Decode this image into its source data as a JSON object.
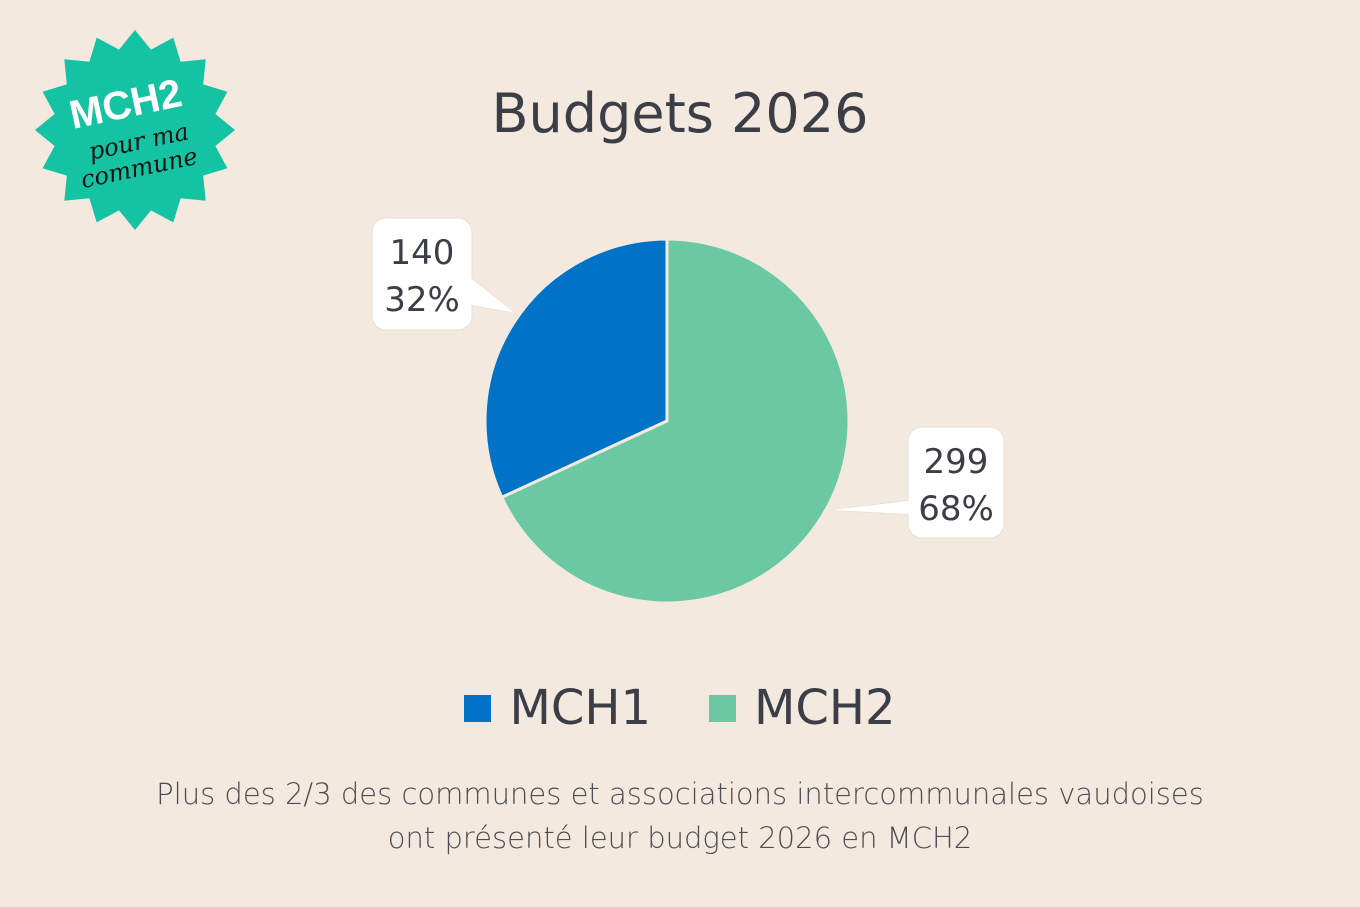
{
  "logo": {
    "line1": "MCH2",
    "line2": "pour ma",
    "line3": "commune"
  },
  "colors": {
    "background": "#f3e9df",
    "mch1": "#0173c6",
    "mch2": "#6ac9a3",
    "logo": "#14c3a2"
  },
  "chart_data": {
    "type": "pie",
    "title": "Budgets 2026",
    "categories": [
      "MCH1",
      "MCH2"
    ],
    "values": [
      140,
      299
    ],
    "percent_labels": [
      "32%",
      "68%"
    ],
    "value_labels": [
      "140",
      "299"
    ],
    "legend": "bottom-center"
  },
  "caption": {
    "line1": "Plus des 2/3 des communes et associations intercommunales vaudoises",
    "line2": "ont présenté leur budget 2026 en MCH2"
  }
}
